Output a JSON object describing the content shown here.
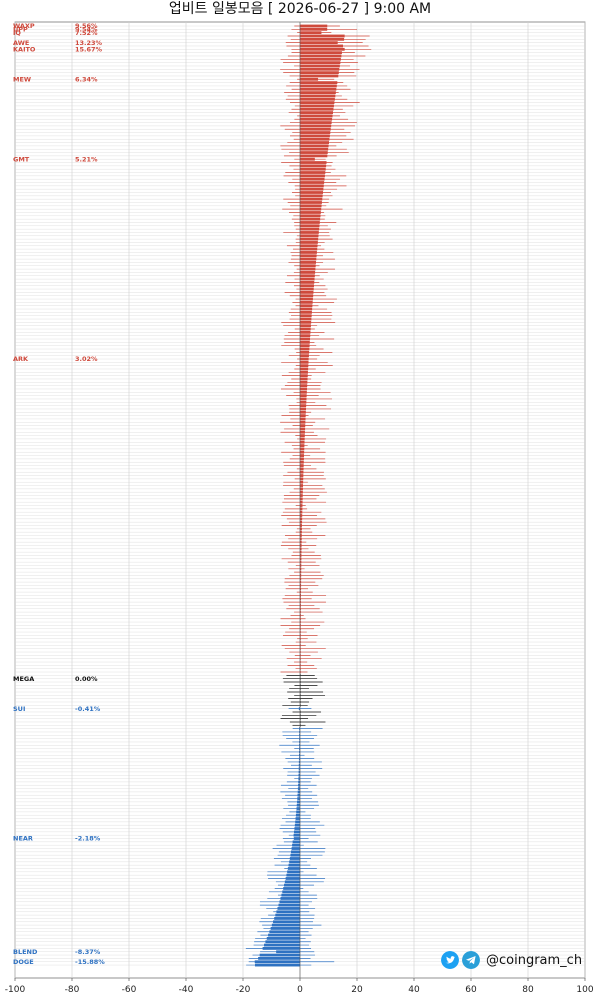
{
  "header": {
    "title": "업비트 일봉모음 [ 2026-06-27 ]  9:00 AM"
  },
  "brand": {
    "handle": "@coingram_ch",
    "icons": [
      "twitter-icon",
      "telegram-icon"
    ]
  },
  "colors": {
    "positive": "#cf4a3d",
    "neutral": "#111111",
    "negative": "#2f72c2",
    "grid": "#d8d8d8",
    "twitter": "#1da1f2",
    "telegram": "#2a9fd8"
  },
  "chart_data": {
    "type": "bar",
    "orientation": "horizontal",
    "xlim": [
      -100,
      100
    ],
    "x_ticks": [
      -100,
      -80,
      -60,
      -40,
      -20,
      0,
      20,
      40,
      60,
      80,
      100
    ],
    "grid": true,
    "visible_rows": [
      {
        "name": "WAXP",
        "change": "9.56%",
        "value": 9.56,
        "low": -2,
        "high": 14
      },
      {
        "name": "UPP",
        "change": "9.54%",
        "value": 9.54,
        "low": -3,
        "high": 20
      },
      {
        "name": "IQ",
        "change": "7.52%",
        "value": 7.52,
        "low": -1,
        "high": 11
      },
      {
        "name": "KAITO",
        "change": "15.67%",
        "value": 15.67,
        "low": -3,
        "high": 25
      },
      {
        "name": "AWE",
        "change": "13.23%",
        "value": 13.23,
        "low": -5,
        "high": 22
      },
      {
        "name": "MEW",
        "change": "6.34%",
        "value": 6.34,
        "low": -1,
        "high": 12
      },
      {
        "name": "GMT",
        "change": "5.21%",
        "value": 5.21,
        "low": -2,
        "high": 9
      },
      {
        "name": "ARK",
        "change": "3.02%",
        "value": 3.02,
        "low": -1,
        "high": 6
      },
      {
        "name": "MEGA",
        "change": "0.00%",
        "value": 0,
        "low": -6,
        "high": 6
      },
      {
        "name": "SUI",
        "change": "-0.41%",
        "value": -0.41,
        "low": -4,
        "high": 4
      },
      {
        "name": "NEAR",
        "change": "-2.18%",
        "value": -2.18,
        "low": -6,
        "high": 3
      },
      {
        "name": "BLEND",
        "change": "-8.37%",
        "value": -8.37,
        "low": -14,
        "high": 5
      },
      {
        "name": "DOGE",
        "change": "-15.88%",
        "value": -15.88,
        "low": -18,
        "high": 12
      }
    ]
  }
}
